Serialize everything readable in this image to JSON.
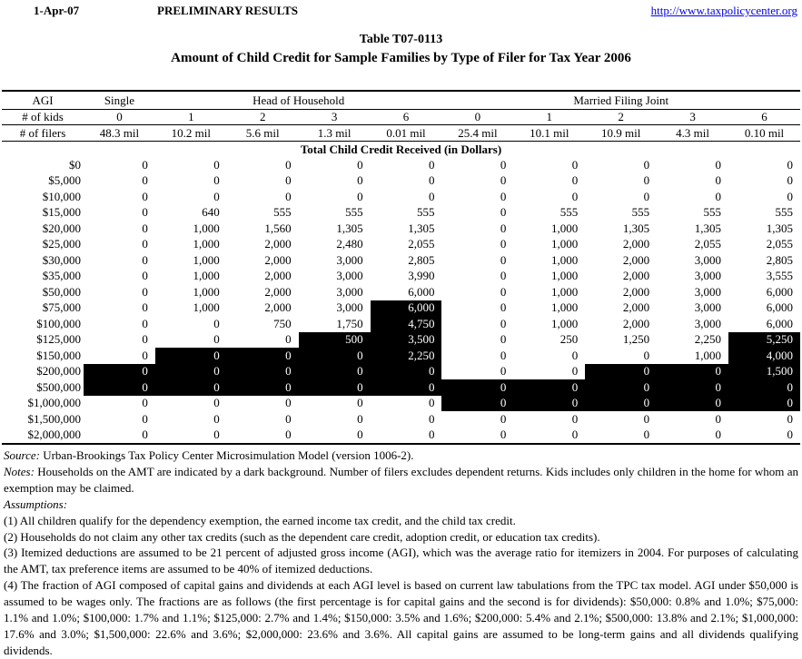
{
  "page": {
    "date": "1-Apr-07",
    "status": "PRELIMINARY RESULTS",
    "url": "http://www.taxpolicycenter.org",
    "title": "Table T07-0113",
    "subtitle": "Amount of Child Credit for Sample Families by Type of Filer for Tax Year 2006"
  },
  "colors": {
    "link": "#0000ee",
    "amt_background": "#000000",
    "amt_text": "#ffffff"
  },
  "table": {
    "corner_label": "AGI",
    "groups": [
      {
        "label": "Single",
        "span": 1
      },
      {
        "label": "Head of Household",
        "span": 4
      },
      {
        "label": "Married Filing Joint",
        "span": 5
      }
    ],
    "kids_label": "# of kids",
    "kids": [
      "0",
      "1",
      "2",
      "3",
      "6",
      "0",
      "1",
      "2",
      "3",
      "6"
    ],
    "filers_label": "# of filers",
    "filers": [
      "48.3 mil",
      "10.2 mil",
      "5.6 mil",
      "1.3 mil",
      "0.01 mil",
      "25.4 mil",
      "10.1 mil",
      "10.9 mil",
      "4.3 mil",
      "0.10 mil"
    ],
    "section_title": "Total Child Credit Received (in Dollars)",
    "rows": [
      {
        "label": "$0",
        "values": [
          "0",
          "0",
          "0",
          "0",
          "0",
          "0",
          "0",
          "0",
          "0",
          "0"
        ],
        "amt": [
          0,
          0,
          0,
          0,
          0,
          0,
          0,
          0,
          0,
          0
        ]
      },
      {
        "label": "$5,000",
        "values": [
          "0",
          "0",
          "0",
          "0",
          "0",
          "0",
          "0",
          "0",
          "0",
          "0"
        ],
        "amt": [
          0,
          0,
          0,
          0,
          0,
          0,
          0,
          0,
          0,
          0
        ]
      },
      {
        "label": "$10,000",
        "values": [
          "0",
          "0",
          "0",
          "0",
          "0",
          "0",
          "0",
          "0",
          "0",
          "0"
        ],
        "amt": [
          0,
          0,
          0,
          0,
          0,
          0,
          0,
          0,
          0,
          0
        ]
      },
      {
        "label": "$15,000",
        "values": [
          "0",
          "640",
          "555",
          "555",
          "555",
          "0",
          "555",
          "555",
          "555",
          "555"
        ],
        "amt": [
          0,
          0,
          0,
          0,
          0,
          0,
          0,
          0,
          0,
          0
        ]
      },
      {
        "label": "$20,000",
        "values": [
          "0",
          "1,000",
          "1,560",
          "1,305",
          "1,305",
          "0",
          "1,000",
          "1,305",
          "1,305",
          "1,305"
        ],
        "amt": [
          0,
          0,
          0,
          0,
          0,
          0,
          0,
          0,
          0,
          0
        ]
      },
      {
        "label": "$25,000",
        "values": [
          "0",
          "1,000",
          "2,000",
          "2,480",
          "2,055",
          "0",
          "1,000",
          "2,000",
          "2,055",
          "2,055"
        ],
        "amt": [
          0,
          0,
          0,
          0,
          0,
          0,
          0,
          0,
          0,
          0
        ]
      },
      {
        "label": "$30,000",
        "values": [
          "0",
          "1,000",
          "2,000",
          "3,000",
          "2,805",
          "0",
          "1,000",
          "2,000",
          "3,000",
          "2,805"
        ],
        "amt": [
          0,
          0,
          0,
          0,
          0,
          0,
          0,
          0,
          0,
          0
        ]
      },
      {
        "label": "$35,000",
        "values": [
          "0",
          "1,000",
          "2,000",
          "3,000",
          "3,990",
          "0",
          "1,000",
          "2,000",
          "3,000",
          "3,555"
        ],
        "amt": [
          0,
          0,
          0,
          0,
          0,
          0,
          0,
          0,
          0,
          0
        ]
      },
      {
        "label": "$50,000",
        "values": [
          "0",
          "1,000",
          "2,000",
          "3,000",
          "6,000",
          "0",
          "1,000",
          "2,000",
          "3,000",
          "6,000"
        ],
        "amt": [
          0,
          0,
          0,
          0,
          0,
          0,
          0,
          0,
          0,
          0
        ]
      },
      {
        "label": "$75,000",
        "values": [
          "0",
          "1,000",
          "2,000",
          "3,000",
          "6,000",
          "0",
          "1,000",
          "2,000",
          "3,000",
          "6,000"
        ],
        "amt": [
          0,
          0,
          0,
          0,
          1,
          0,
          0,
          0,
          0,
          0
        ]
      },
      {
        "label": "$100,000",
        "values": [
          "0",
          "0",
          "750",
          "1,750",
          "4,750",
          "0",
          "1,000",
          "2,000",
          "3,000",
          "6,000"
        ],
        "amt": [
          0,
          0,
          0,
          0,
          1,
          0,
          0,
          0,
          0,
          0
        ]
      },
      {
        "label": "$125,000",
        "values": [
          "0",
          "0",
          "0",
          "500",
          "3,500",
          "0",
          "250",
          "1,250",
          "2,250",
          "5,250"
        ],
        "amt": [
          0,
          0,
          0,
          1,
          1,
          0,
          0,
          0,
          0,
          1
        ]
      },
      {
        "label": "$150,000",
        "values": [
          "0",
          "0",
          "0",
          "0",
          "2,250",
          "0",
          "0",
          "0",
          "1,000",
          "4,000"
        ],
        "amt": [
          0,
          1,
          1,
          1,
          1,
          0,
          0,
          0,
          0,
          1
        ]
      },
      {
        "label": "$200,000",
        "values": [
          "0",
          "0",
          "0",
          "0",
          "0",
          "0",
          "0",
          "0",
          "0",
          "1,500"
        ],
        "amt": [
          1,
          1,
          1,
          1,
          1,
          0,
          0,
          1,
          1,
          1
        ]
      },
      {
        "label": "$500,000",
        "values": [
          "0",
          "0",
          "0",
          "0",
          "0",
          "0",
          "0",
          "0",
          "0",
          "0"
        ],
        "amt": [
          1,
          1,
          1,
          1,
          1,
          1,
          1,
          1,
          1,
          1
        ]
      },
      {
        "label": "$1,000,000",
        "values": [
          "0",
          "0",
          "0",
          "0",
          "0",
          "0",
          "0",
          "0",
          "0",
          "0"
        ],
        "amt": [
          0,
          0,
          0,
          0,
          0,
          1,
          1,
          1,
          1,
          1
        ]
      },
      {
        "label": "$1,500,000",
        "values": [
          "0",
          "0",
          "0",
          "0",
          "0",
          "0",
          "0",
          "0",
          "0",
          "0"
        ],
        "amt": [
          0,
          0,
          0,
          0,
          0,
          0,
          0,
          0,
          0,
          0
        ]
      },
      {
        "label": "$2,000,000",
        "values": [
          "0",
          "0",
          "0",
          "0",
          "0",
          "0",
          "0",
          "0",
          "0",
          "0"
        ],
        "amt": [
          0,
          0,
          0,
          0,
          0,
          0,
          0,
          0,
          0,
          0
        ]
      }
    ]
  },
  "notes": {
    "source_label": "Source:",
    "source_text": " Urban-Brookings Tax Policy Center Microsimulation Model (version 1006-2).",
    "notes_label": "Notes:",
    "notes_text": " Households on the AMT are indicated by a dark background. Number of filers excludes dependent returns. Kids includes only children in the home for whom an exemption may be claimed.",
    "assumptions_label": "Assumptions:",
    "assumption_items": [
      "(1) All children qualify for the dependency exemption, the earned income tax credit, and the child tax credit.",
      "(2) Households do not claim any other tax credits (such as the dependent care credit, adoption credit, or education tax credits).",
      "(3) Itemized deductions are assumed to be 21 percent of adjusted gross income (AGI), which was the average ratio for itemizers in 2004. For purposes of calculating the AMT, tax preference items are assumed to be 40% of itemized deductions.",
      "(4) The fraction of AGI composed of capital gains and dividends at each AGI level is based on current law tabulations from the TPC tax model. AGI under $50,000 is assumed to be wages only. The fractions are as follows (the first percentage is for capital gains and the second is for dividends): $50,000: 0.8% and 1.0%; $75,000: 1.1% and 1.0%; $100,000: 1.7% and 1.1%; $125,000: 2.7% and 1.4%; $150,000: 3.5% and 1.6%; $200,000: 5.4% and 2.1%; $500,000: 13.8% and 2.1%; $1,000,000: 17.6% and 3.0%; $1,500,000: 22.6% and 3.6%; $2,000,000: 23.6% and 3.6%. All capital gains are assumed to be long-term gains and all dividends qualifying dividends."
    ]
  }
}
